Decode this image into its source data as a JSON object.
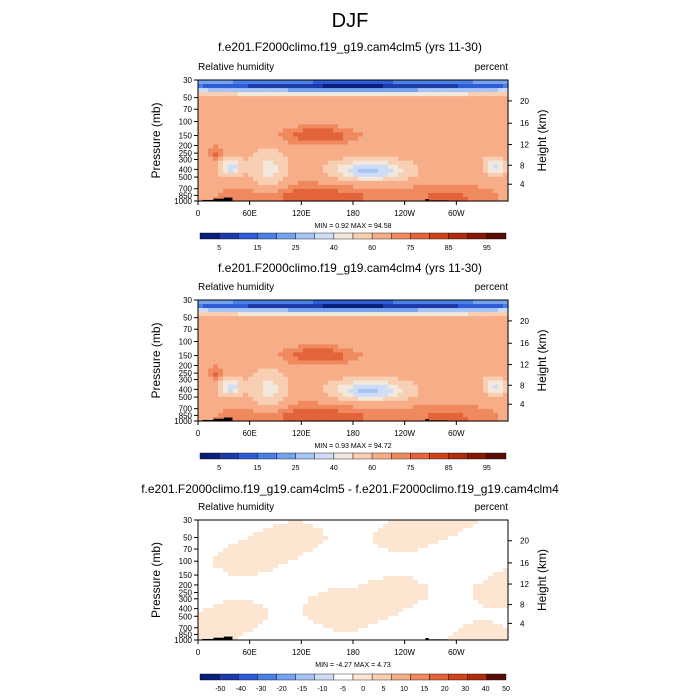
{
  "page": {
    "title": "DJF"
  },
  "colors": {
    "rh_palette": [
      "#0a1f78",
      "#1d3aa8",
      "#2e5bd6",
      "#4a7fe6",
      "#76a3ef",
      "#a6c4f4",
      "#cfdcf6",
      "#f3e8dc",
      "#f9cfb4",
      "#f7ae88",
      "#f08a5e",
      "#e3643a",
      "#cf4318",
      "#b02b0b",
      "#861807",
      "#5a0d05"
    ],
    "diff_palette": [
      "#0a1f78",
      "#1d3aa8",
      "#2e5bd6",
      "#4a7fe6",
      "#76a3ef",
      "#a6c4f4",
      "#cfdcf6",
      "#ffffff",
      "#fce6d2",
      "#f9cfb4",
      "#f7ae88",
      "#f08a5e",
      "#e3643a",
      "#cf4318",
      "#b02b0b",
      "#5a0d05"
    ],
    "terrain": "#000000"
  },
  "chart_data": [
    {
      "type": "heatmap",
      "title": "f.e201.F2000climo.f19_g19.cam4clm5 (yrs 11-30)",
      "left_label": "Relative humidity",
      "right_label": "percent",
      "ylabel": "Pressure (mb)",
      "y2label": "Height (km)",
      "x_ticks": [
        "0",
        "60E",
        "120E",
        "180",
        "120W",
        "60W"
      ],
      "y_ticks": [
        "1000",
        "850",
        "700",
        "500",
        "400",
        "300",
        "250",
        "200",
        "150",
        "100",
        "70",
        "50",
        "30"
      ],
      "y2_ticks": [
        "4",
        "8",
        "12",
        "16",
        "20"
      ],
      "stats": "MIN =   0.92  MAX =  94.58",
      "colorbar_labels": [
        "5",
        "15",
        "25",
        "40",
        "60",
        "75",
        "85",
        "95"
      ],
      "palette": "rh_palette",
      "field": "rh"
    },
    {
      "type": "heatmap",
      "title": "f.e201.F2000climo.f19_g19.cam4clm4 (yrs 11-30)",
      "left_label": "Relative humidity",
      "right_label": "percent",
      "ylabel": "Pressure (mb)",
      "y2label": "Height (km)",
      "x_ticks": [
        "0",
        "60E",
        "120E",
        "180",
        "120W",
        "60W"
      ],
      "y_ticks": [
        "1000",
        "850",
        "700",
        "500",
        "400",
        "300",
        "250",
        "200",
        "150",
        "100",
        "70",
        "50",
        "30"
      ],
      "y2_ticks": [
        "4",
        "8",
        "12",
        "16",
        "20"
      ],
      "stats": "MIN =   0.93  MAX =  94.72",
      "colorbar_labels": [
        "5",
        "15",
        "25",
        "40",
        "60",
        "75",
        "85",
        "95"
      ],
      "palette": "rh_palette",
      "field": "rh"
    },
    {
      "type": "heatmap",
      "title": "f.e201.F2000climo.f19_g19.cam4clm5 - f.e201.F2000climo.f19_g19.cam4clm4",
      "left_label": "Relative humidity",
      "right_label": "percent",
      "ylabel": "Pressure (mb)",
      "y2label": "Height (km)",
      "x_ticks": [
        "0",
        "60E",
        "120E",
        "180",
        "120W",
        "60W"
      ],
      "y_ticks": [
        "1000",
        "850",
        "700",
        "500",
        "400",
        "300",
        "250",
        "200",
        "150",
        "100",
        "70",
        "50",
        "30"
      ],
      "y2_ticks": [
        "4",
        "8",
        "12",
        "16",
        "20"
      ],
      "stats": "MIN =  -4.27  MAX =   4.73",
      "colorbar_labels": [
        "-50",
        "-40",
        "-30",
        "-20",
        "-15",
        "-10",
        "-5",
        "0",
        "5",
        "10",
        "15",
        "20",
        "30",
        "40",
        "50"
      ],
      "palette": "diff_palette",
      "field": "diff"
    }
  ]
}
